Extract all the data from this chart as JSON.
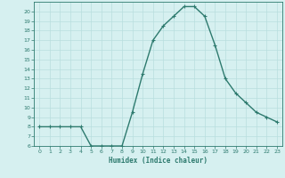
{
  "xlabel": "Humidex (Indice chaleur)",
  "ylabel": "",
  "x": [
    0,
    1,
    2,
    3,
    4,
    5,
    6,
    7,
    8,
    9,
    10,
    11,
    12,
    13,
    14,
    15,
    16,
    17,
    18,
    19,
    20,
    21,
    22,
    23
  ],
  "y": [
    8,
    8,
    8,
    8,
    8,
    6,
    6,
    6,
    6,
    9.5,
    13.5,
    17,
    18.5,
    19.5,
    20.5,
    20.5,
    19.5,
    16.5,
    13,
    11.5,
    10.5,
    9.5,
    9,
    8.5
  ],
  "line_color": "#2d7a6e",
  "bg_color": "#d6f0f0",
  "grid_color": "#b8dede",
  "tick_color": "#2d7a6e",
  "label_color": "#2d7a6e",
  "ylim": [
    6,
    21
  ],
  "xlim": [
    -0.5,
    23.5
  ],
  "yticks": [
    6,
    7,
    8,
    9,
    10,
    11,
    12,
    13,
    14,
    15,
    16,
    17,
    18,
    19,
    20
  ],
  "xticks": [
    0,
    1,
    2,
    3,
    4,
    5,
    6,
    7,
    8,
    9,
    10,
    11,
    12,
    13,
    14,
    15,
    16,
    17,
    18,
    19,
    20,
    21,
    22,
    23
  ],
  "marker": "+",
  "marker_size": 3.5,
  "linewidth": 1.0
}
